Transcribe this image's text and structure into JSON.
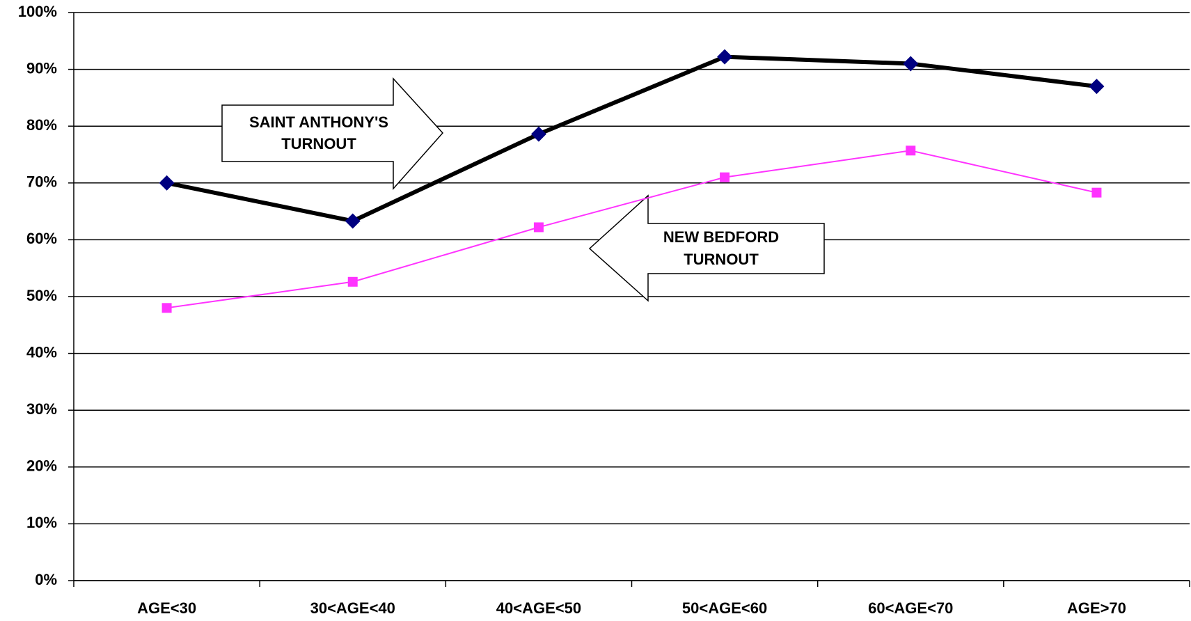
{
  "chart_data": {
    "type": "line",
    "categories": [
      "AGE<30",
      "30<AGE<40",
      "40<AGE<50",
      "50<AGE<60",
      "60<AGE<70",
      "AGE>70"
    ],
    "series": [
      {
        "name": "SAINT ANTHONY'S TURNOUT",
        "color": "#000000",
        "marker_color": "#000080",
        "marker": "diamond",
        "values": [
          70,
          63.3,
          78.6,
          92.2,
          91,
          87
        ]
      },
      {
        "name": "NEW BEDFORD TURNOUT",
        "color": "#ff33ff",
        "marker_color": "#ff33ff",
        "marker": "square",
        "values": [
          48,
          52.6,
          62.2,
          71,
          75.7,
          68.3
        ]
      }
    ],
    "annotations": [
      [
        "SAINT ANTHONY'S",
        "TURNOUT"
      ],
      [
        "NEW BEDFORD",
        "TURNOUT"
      ]
    ],
    "ylim": [
      0,
      100
    ],
    "yticks": [
      {
        "value": 0,
        "label": "0%"
      },
      {
        "value": 10,
        "label": "10%"
      },
      {
        "value": 20,
        "label": "20%"
      },
      {
        "value": 30,
        "label": "30%"
      },
      {
        "value": 40,
        "label": "40%"
      },
      {
        "value": 50,
        "label": "50%"
      },
      {
        "value": 60,
        "label": "60%"
      },
      {
        "value": 70,
        "label": "70%"
      },
      {
        "value": 80,
        "label": "80%"
      },
      {
        "value": 90,
        "label": "90%"
      },
      {
        "value": 100,
        "label": "100%"
      }
    ],
    "grid": true
  }
}
